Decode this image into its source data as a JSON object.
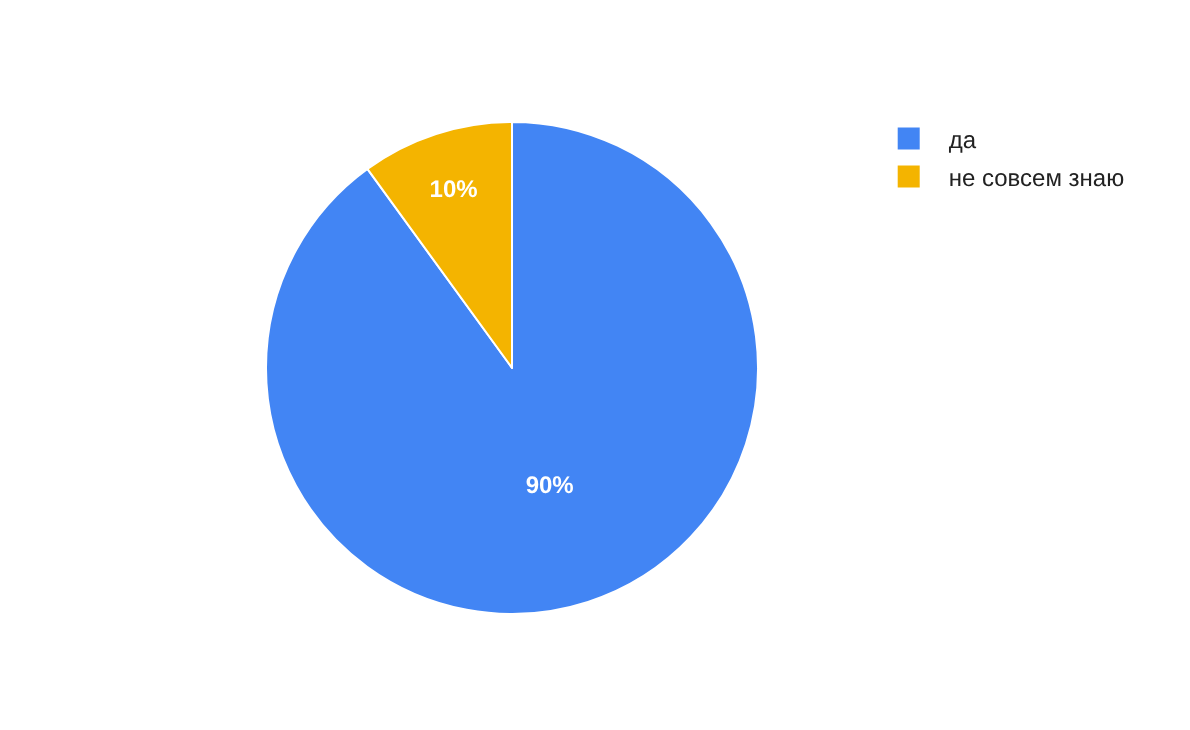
{
  "chart_data": {
    "type": "pie",
    "categories": [
      "да",
      "не совсем знаю"
    ],
    "values": [
      90,
      10
    ],
    "colors": [
      "#4285f4",
      "#f4b400"
    ],
    "value_labels": [
      "90%",
      "10%"
    ],
    "legend": "top right"
  }
}
